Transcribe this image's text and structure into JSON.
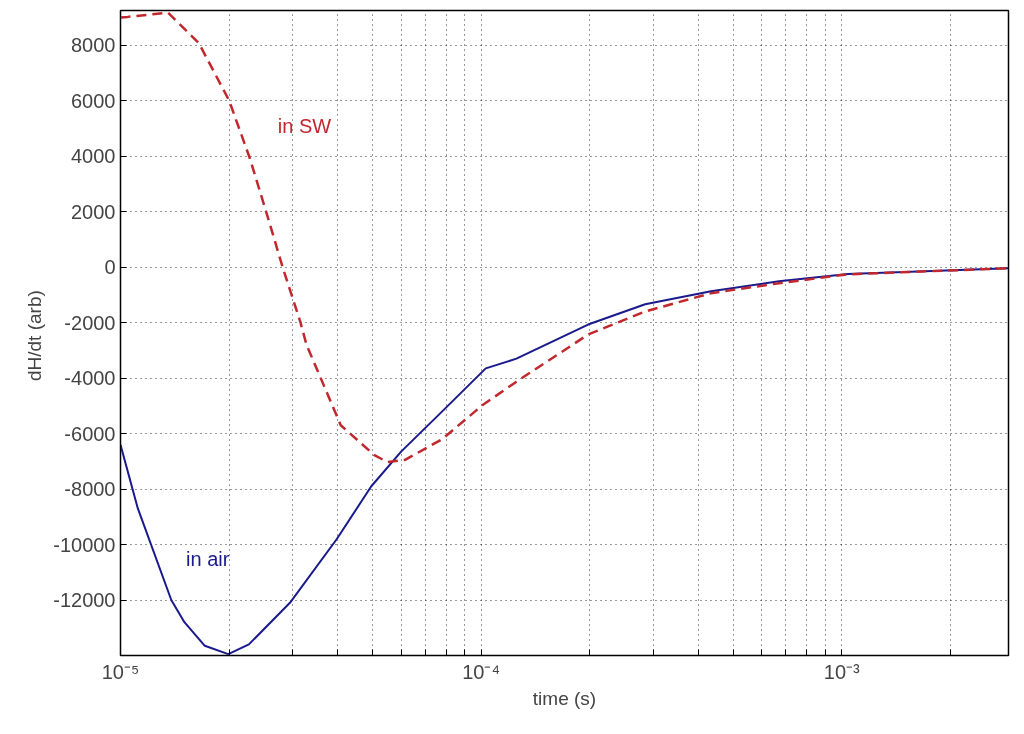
{
  "chart_data": {
    "type": "line",
    "xlabel": "time (s)",
    "ylabel": "dH/dt  (arb)",
    "log": "x",
    "grid": true,
    "xlim": [
      1e-05,
      0.0029
    ],
    "ylim": [
      -14000,
      9250
    ],
    "xticks": [
      {
        "value": 1e-05,
        "label": "10⁻⁵"
      },
      {
        "value": 2e-05,
        "label": null
      },
      {
        "value": 3e-05,
        "label": null
      },
      {
        "value": 4e-05,
        "label": null
      },
      {
        "value": 5e-05,
        "label": null
      },
      {
        "value": 6e-05,
        "label": null
      },
      {
        "value": 7e-05,
        "label": null
      },
      {
        "value": 8e-05,
        "label": null
      },
      {
        "value": 9e-05,
        "label": null
      },
      {
        "value": 0.0001,
        "label": "10⁻⁴"
      },
      {
        "value": 0.0002,
        "label": null
      },
      {
        "value": 0.0003,
        "label": null
      },
      {
        "value": 0.0004,
        "label": null
      },
      {
        "value": 0.0005,
        "label": null
      },
      {
        "value": 0.0006,
        "label": null
      },
      {
        "value": 0.0007,
        "label": null
      },
      {
        "value": 0.0008,
        "label": null
      },
      {
        "value": 0.0009,
        "label": null
      },
      {
        "value": 0.001,
        "label": "10⁻³"
      },
      {
        "value": 0.002,
        "label": null
      }
    ],
    "yticks": [
      -12000,
      -10000,
      -8000,
      -6000,
      -4000,
      -2000,
      0,
      2000,
      4000,
      6000,
      8000
    ],
    "series": [
      {
        "name": "in air",
        "color": "#1a1a8c",
        "line_style": "solid",
        "x": [
          1e-05,
          1.117e-05,
          1.383e-05,
          1.504e-05,
          1.713e-05,
          1.99e-05,
          2.27e-05,
          2.95e-05,
          3.98e-05,
          4.96e-05,
          6e-05,
          7.8e-05,
          0.000103,
          0.0001253,
          0.000198,
          0.000285,
          0.000434,
          0.00067,
          0.00104,
          0.0029
        ],
        "values": [
          -6400,
          -8700,
          -12000,
          -12800,
          -13650,
          -13950,
          -13600,
          -12100,
          -9800,
          -7900,
          -6650,
          -5200,
          -3650,
          -3300,
          -2070,
          -1340,
          -870,
          -510,
          -250,
          -40
        ]
      },
      {
        "name": "in SW",
        "color": "#c0282d",
        "line_style": "dashed",
        "x": [
          1e-05,
          1.047e-05,
          1.356e-05,
          1.648e-05,
          2e-05,
          2.28e-05,
          2.53e-05,
          2.82e-05,
          3.15e-05,
          3.28e-05,
          4.08e-05,
          5.06e-05,
          5.5e-05,
          6.15e-05,
          7.8e-05,
          0.000101,
          0.0001253,
          0.000198,
          0.000285,
          0.000434,
          0.00067,
          0.00104,
          0.0029
        ],
        "values": [
          9000,
          9020,
          9170,
          8080,
          6010,
          3950,
          2030,
          -30,
          -1960,
          -2800,
          -5700,
          -6780,
          -7030,
          -6950,
          -6200,
          -4970,
          -4130,
          -2430,
          -1600,
          -940,
          -580,
          -260,
          -40
        ]
      }
    ]
  }
}
